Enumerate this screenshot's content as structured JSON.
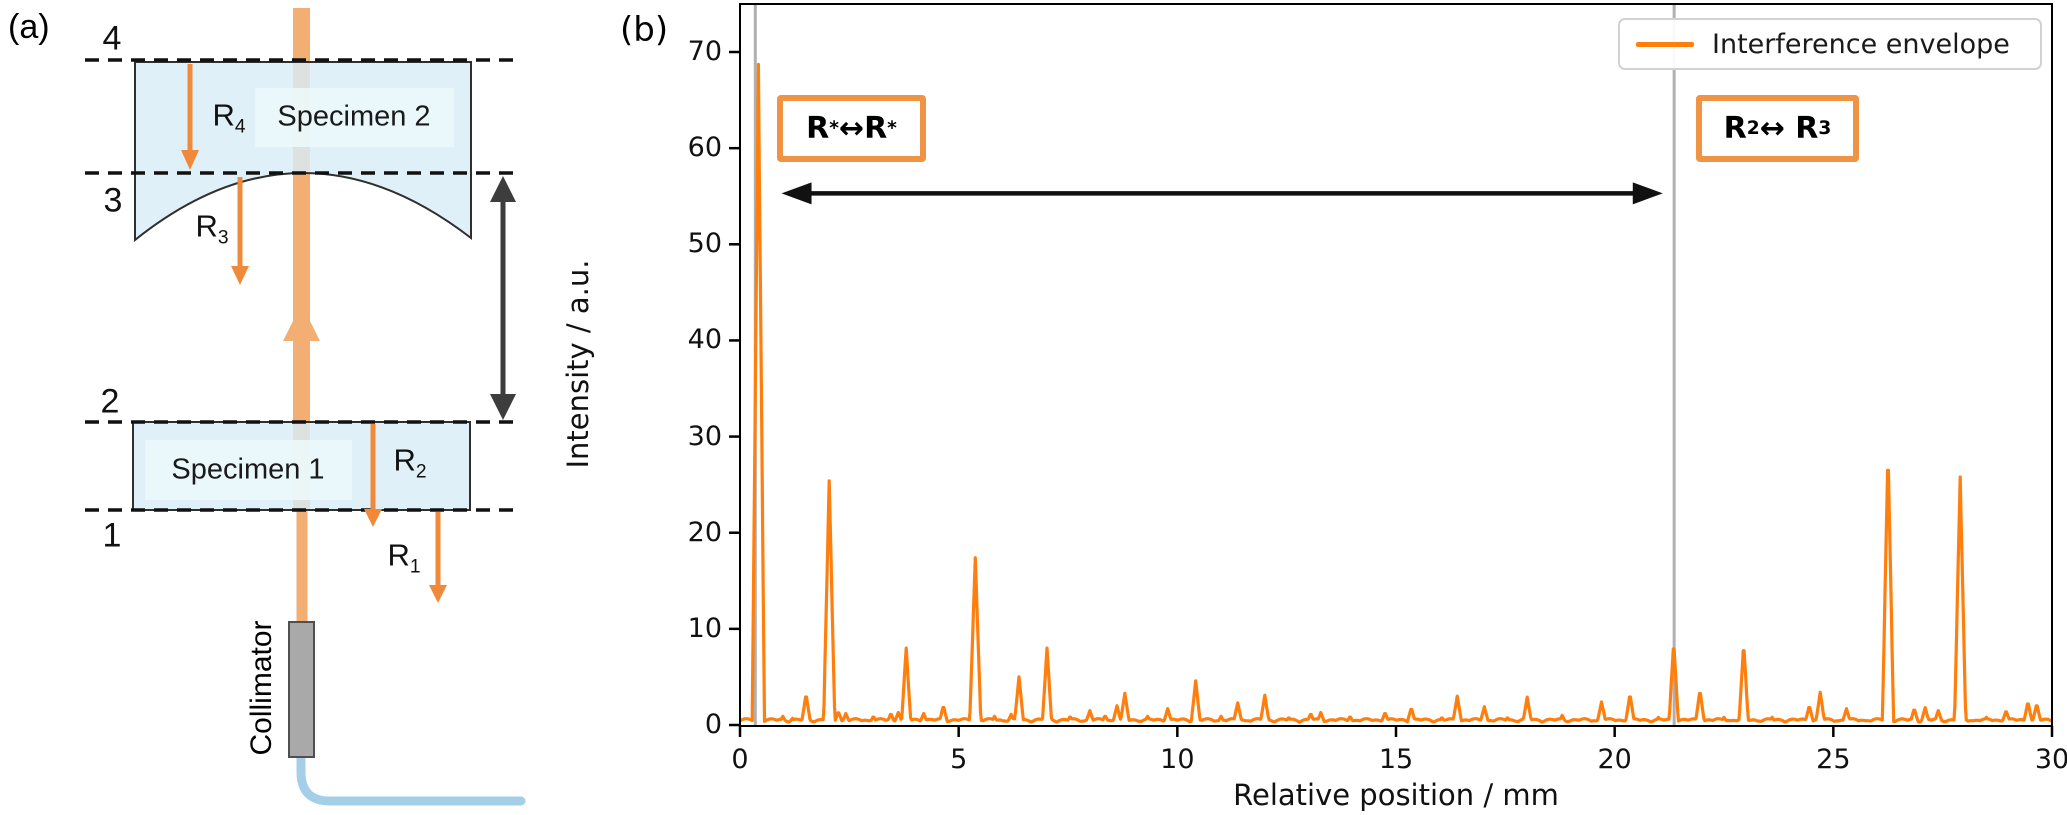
{
  "figure": {
    "background": "#ffffff"
  },
  "panel_a": {
    "label": "(a)",
    "surface_numbers": [
      "4",
      "3",
      "2",
      "1"
    ],
    "reflections": [
      {
        "base": "R",
        "sub": "4"
      },
      {
        "base": "R",
        "sub": "3"
      },
      {
        "base": "R",
        "sub": "2"
      },
      {
        "base": "R",
        "sub": "1"
      }
    ],
    "specimen2_label": "Specimen 2",
    "specimen1_label": "Specimen 1",
    "collimator_label": "Collimator",
    "colors": {
      "beam": "#f3ae74",
      "specimen_fill": "#d8edf6",
      "specimen_inner_box": "#edf8fb",
      "reflection_arrow": "#f08a3a",
      "range_arrow": "#3d3d3d",
      "collimator": "#a9a9a9",
      "fiber": "#a5cfe9"
    }
  },
  "panel_b": {
    "label": "(b)",
    "annotations": [
      {
        "left": "R",
        "left_sub": "*",
        "arrow": "↔",
        "right": "R",
        "right_sub": "*"
      },
      {
        "left": "R",
        "left_sub": "2",
        "arrow": "↔ ",
        "right": "R",
        "right_sub": "3"
      }
    ],
    "annotation_border_color": "#ef9345"
  },
  "chart_data": {
    "type": "line",
    "title": "",
    "xlabel": "Relative position / mm",
    "ylabel": "Intensity / a.u.",
    "xlim": [
      0,
      30
    ],
    "ylim": [
      0,
      75
    ],
    "x_ticks": [
      0,
      5,
      10,
      15,
      20,
      25,
      30
    ],
    "y_ticks": [
      0,
      10,
      20,
      30,
      40,
      50,
      60,
      70
    ],
    "grid": false,
    "legend": [
      "Interference envelope"
    ],
    "legend_position": "upper right",
    "series_color": "#ff7f0e",
    "vlines_x": [
      0.35,
      21.36
    ],
    "vline_color": "#b0b0b0",
    "span_arrow": {
      "x1": 0.95,
      "x2": 21.1,
      "y": 55.3,
      "color": "#111111"
    },
    "baseline_level": 0.45,
    "peaks_x_h": [
      [
        0.42,
        68.7,
        0.14
      ],
      [
        0.98,
        0.9
      ],
      [
        1.2,
        0.7
      ],
      [
        1.51,
        3.2
      ],
      [
        2.04,
        25.4,
        0.13
      ],
      [
        2.25,
        1.4
      ],
      [
        2.42,
        1.2
      ],
      [
        3.05,
        0.9
      ],
      [
        3.45,
        1.2
      ],
      [
        3.62,
        1.3
      ],
      [
        3.8,
        8.0
      ],
      [
        4.2,
        1.2
      ],
      [
        4.65,
        2.0
      ],
      [
        5.38,
        17.4,
        0.13
      ],
      [
        5.82,
        0.9
      ],
      [
        6.2,
        1.1
      ],
      [
        6.38,
        5.0
      ],
      [
        7.02,
        8.0
      ],
      [
        7.55,
        0.9
      ],
      [
        8.0,
        1.5
      ],
      [
        8.35,
        1.0
      ],
      [
        8.62,
        2.0
      ],
      [
        8.8,
        3.3
      ],
      [
        9.32,
        0.9
      ],
      [
        9.78,
        1.7
      ],
      [
        10.42,
        4.6
      ],
      [
        11.0,
        0.9
      ],
      [
        11.38,
        2.3
      ],
      [
        12.0,
        3.1
      ],
      [
        12.55,
        0.8
      ],
      [
        13.05,
        1.2
      ],
      [
        13.28,
        1.3
      ],
      [
        13.95,
        0.9
      ],
      [
        14.75,
        1.3
      ],
      [
        15.35,
        1.8
      ],
      [
        16.05,
        0.8
      ],
      [
        16.4,
        3.0
      ],
      [
        17.02,
        1.9
      ],
      [
        17.55,
        0.8
      ],
      [
        18.0,
        2.9
      ],
      [
        18.8,
        1.0
      ],
      [
        19.7,
        2.4
      ],
      [
        20.35,
        3.2
      ],
      [
        21.0,
        0.8
      ],
      [
        21.35,
        8.7
      ],
      [
        21.95,
        3.6
      ],
      [
        22.5,
        0.8
      ],
      [
        22.95,
        8.5
      ],
      [
        23.6,
        0.8
      ],
      [
        24.45,
        2.0
      ],
      [
        24.7,
        3.4
      ],
      [
        25.3,
        1.7
      ],
      [
        26.25,
        28.7,
        0.13
      ],
      [
        26.85,
        1.7
      ],
      [
        27.1,
        1.8
      ],
      [
        27.4,
        1.5
      ],
      [
        27.9,
        25.8,
        0.13
      ],
      [
        28.5,
        0.8
      ],
      [
        28.95,
        1.5
      ],
      [
        29.45,
        2.4
      ],
      [
        29.65,
        2.2
      ]
    ]
  }
}
